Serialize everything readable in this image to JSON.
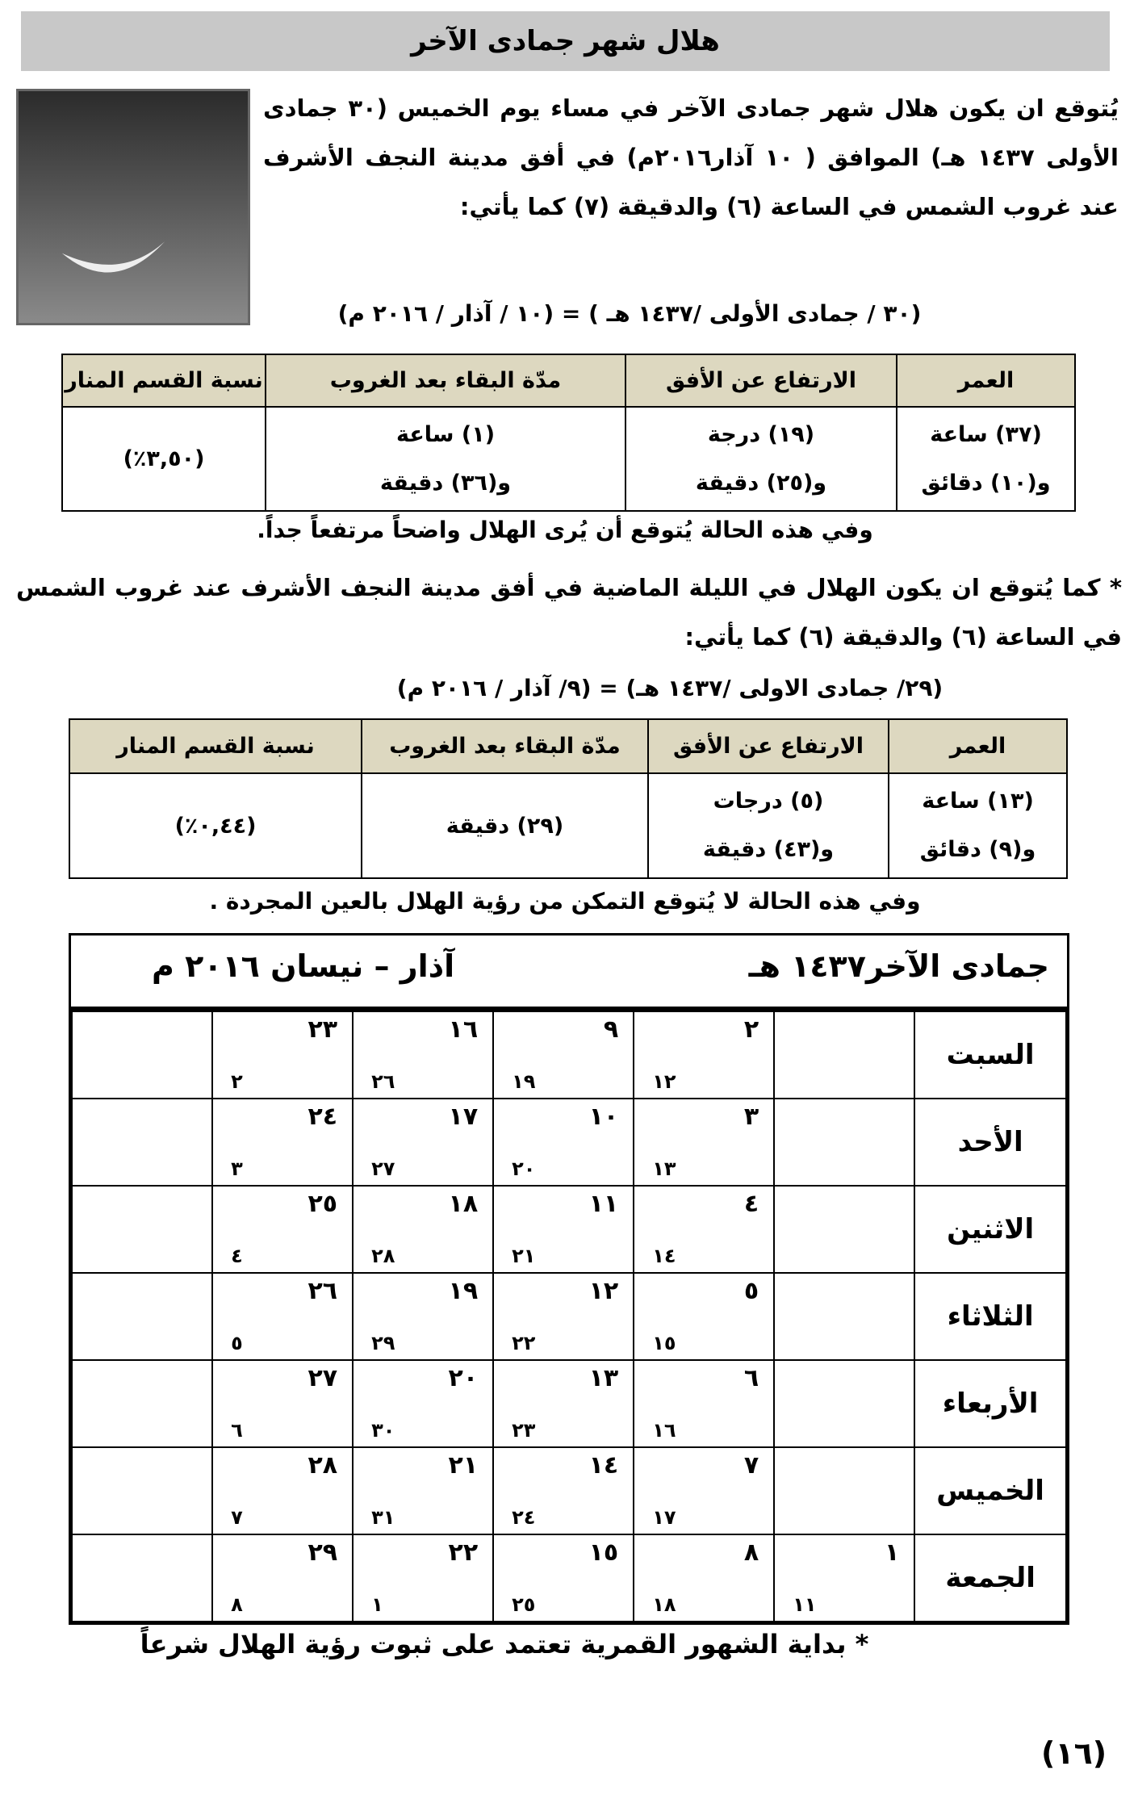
{
  "title": "هلال شهر جمادى الآخر",
  "intro": "يُتوقع ان يكون هلال شهر جمادى الآخر في مساء يوم الخميس (٣٠ جمادى الأولى ١٤٣٧ هـ) الموافق ( ١٠ آذار٢٠١٦م) في أفق مدينة النجف الأشرف عند غروب الشمس في الساعة (٦) والدقيقة (٧) كما يأتي:",
  "date1": "(٣٠ / جمادى الأولى /١٤٣٧ هـ ) = (١٠ / آذار / ٢٠١٦ م)",
  "table_headers": [
    "العمر",
    "الارتفاع عن الأفق",
    "مدّة البقاء بعد الغروب",
    "نسبة القسم المنار"
  ],
  "table1": {
    "age": [
      "(٣٧) ساعة",
      "و(١٠) دقائق"
    ],
    "altitude": [
      "(١٩) درجة",
      "و(٢٥) دقيقة"
    ],
    "duration": [
      "(١)   ساعة",
      "و(٣٦) دقيقة"
    ],
    "illumination": "(٣,٥٠٪)"
  },
  "note1": "وفي هذه الحالة يُتوقع أن يُرى الهلال واضحاً مرتفعاً جداً.",
  "para2": "* كما يُتوقع ان يكون الهلال في الليلة الماضية في أفق مدينة النجف الأشرف عند غروب الشمس في الساعة (٦) والدقيقة (٦) كما يأتي:",
  "date2": "(٢٩/ جمادى الاولى  /١٤٣٧ هـ) = (٩/ آذار / ٢٠١٦ م)",
  "table2": {
    "age": [
      "(١٣) ساعة",
      "و(٩) دقائق"
    ],
    "altitude": [
      "(٥) درجات",
      "و(٤٣) دقيقة"
    ],
    "duration": "(٢٩) دقيقة",
    "illumination": "(٠,٤٤٪)"
  },
  "note2": "وفي هذه الحالة لا يُتوقع التمكن من رؤية الهلال بالعين المجردة .",
  "calendar": {
    "hijri_title": "جمادى الآخر١٤٣٧ هـ",
    "greg_title": "آذار – نيسان ٢٠١٦ م",
    "rows": [
      {
        "day": "السبت",
        "cells": [
          null,
          {
            "h": "٢",
            "g": "١٢"
          },
          {
            "h": "٩",
            "g": "١٩"
          },
          {
            "h": "١٦",
            "g": "٢٦"
          },
          {
            "h": "٢٣",
            "g": "٢"
          },
          null
        ]
      },
      {
        "day": "الأحد",
        "cells": [
          null,
          {
            "h": "٣",
            "g": "١٣"
          },
          {
            "h": "١٠",
            "g": "٢٠"
          },
          {
            "h": "١٧",
            "g": "٢٧"
          },
          {
            "h": "٢٤",
            "g": "٣"
          },
          null
        ]
      },
      {
        "day": "الاثنين",
        "cells": [
          null,
          {
            "h": "٤",
            "g": "١٤"
          },
          {
            "h": "١١",
            "g": "٢١"
          },
          {
            "h": "١٨",
            "g": "٢٨"
          },
          {
            "h": "٢٥",
            "g": "٤"
          },
          null
        ]
      },
      {
        "day": "الثلاثاء",
        "cells": [
          null,
          {
            "h": "٥",
            "g": "١٥"
          },
          {
            "h": "١٢",
            "g": "٢٢"
          },
          {
            "h": "١٩",
            "g": "٢٩"
          },
          {
            "h": "٢٦",
            "g": "٥"
          },
          null
        ]
      },
      {
        "day": "الأربعاء",
        "cells": [
          null,
          {
            "h": "٦",
            "g": "١٦"
          },
          {
            "h": "١٣",
            "g": "٢٣"
          },
          {
            "h": "٢٠",
            "g": "٣٠"
          },
          {
            "h": "٢٧",
            "g": "٦"
          },
          null
        ]
      },
      {
        "day": "الخميس",
        "cells": [
          null,
          {
            "h": "٧",
            "g": "١٧"
          },
          {
            "h": "١٤",
            "g": "٢٤"
          },
          {
            "h": "٢١",
            "g": "٣١"
          },
          {
            "h": "٢٨",
            "g": "٧"
          },
          null
        ]
      },
      {
        "day": "الجمعة",
        "cells": [
          {
            "h": "١",
            "g": "١١"
          },
          {
            "h": "٨",
            "g": "١٨"
          },
          {
            "h": "١٥",
            "g": "٢٥"
          },
          {
            "h": "٢٢",
            "g": "١"
          },
          {
            "h": "٢٩",
            "g": "٨"
          },
          null
        ]
      }
    ]
  },
  "footnote": "*  بداية الشهور القمرية تعتمد على ثبوت رؤية الهلال شرعاً",
  "page_number": "(١٦)",
  "colors": {
    "title_bar": "#c8c8c8",
    "table_header": "#ddd8c0"
  }
}
